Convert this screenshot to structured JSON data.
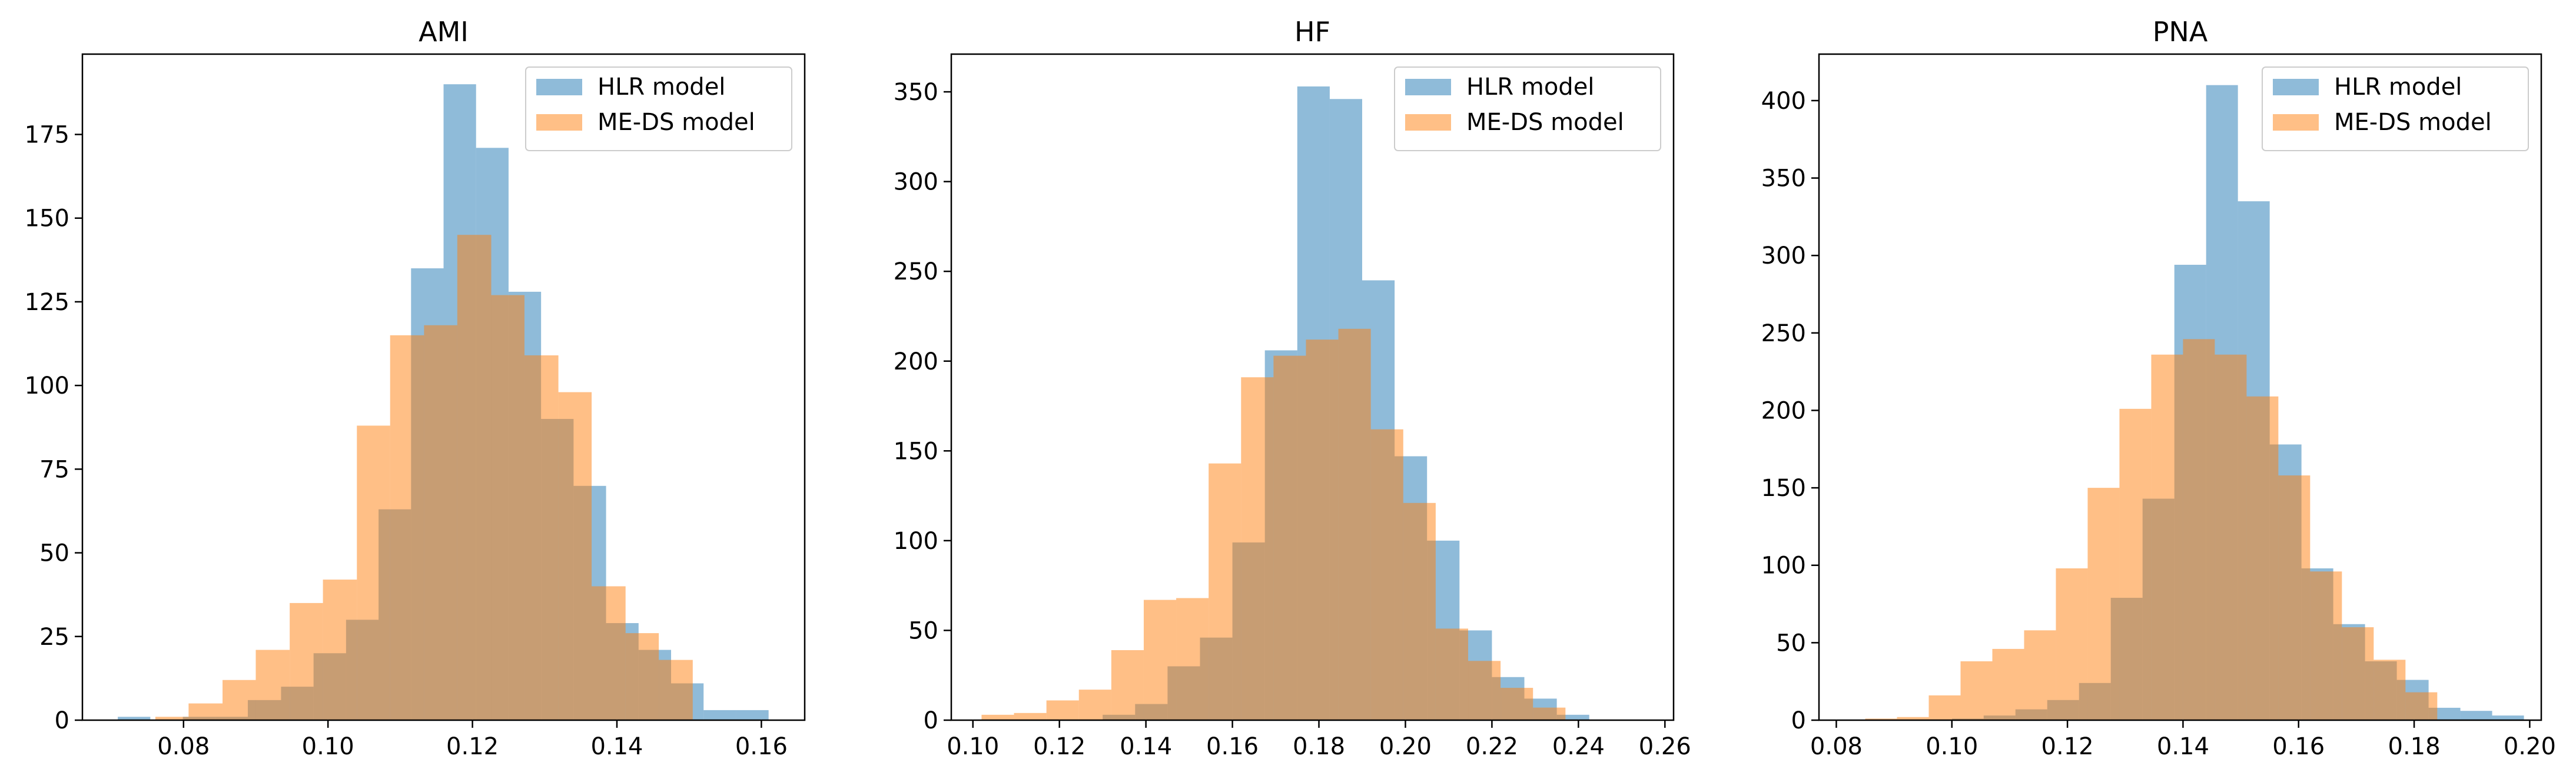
{
  "figure": {
    "colors": {
      "hlr": "#1f77b4",
      "meds": "#ff7f0e",
      "axis": "#000000"
    }
  },
  "chart_data": [
    {
      "type": "histogram",
      "title": "AMI",
      "xlim": [
        0.066,
        0.166
      ],
      "ylim": [
        0,
        199
      ],
      "xticks": [
        0.08,
        0.1,
        0.12,
        0.14,
        0.16
      ],
      "xtick_labels": [
        "0.08",
        "0.10",
        "0.12",
        "0.14",
        "0.16"
      ],
      "yticks": [
        0,
        25,
        50,
        75,
        100,
        125,
        150,
        175
      ],
      "ytick_labels": [
        "0",
        "25",
        "50",
        "75",
        "100",
        "125",
        "150",
        "175"
      ],
      "legend": {
        "loc": "upper right"
      },
      "series": [
        {
          "name": "HLR model",
          "alpha": 0.5,
          "edges": [
            0.0709,
            0.0754,
            0.0799,
            0.0844,
            0.0889,
            0.0935,
            0.098,
            0.1025,
            0.107,
            0.1115,
            0.116,
            0.1205,
            0.125,
            0.1295,
            0.134,
            0.1385,
            0.143,
            0.1475,
            0.152,
            0.1565,
            0.161
          ],
          "values": [
            1,
            0,
            1,
            1,
            6,
            10,
            20,
            30,
            63,
            135,
            190,
            171,
            128,
            90,
            70,
            29,
            21,
            11,
            3,
            3
          ]
        },
        {
          "name": "ME-DS model",
          "alpha": 0.5,
          "edges": [
            0.0761,
            0.0807,
            0.0854,
            0.09,
            0.0947,
            0.0993,
            0.104,
            0.1086,
            0.1133,
            0.1179,
            0.1226,
            0.1272,
            0.1319,
            0.1365,
            0.1412,
            0.1458,
            0.1505
          ],
          "values": [
            1,
            5,
            12,
            21,
            35,
            42,
            88,
            115,
            118,
            145,
            127,
            109,
            98,
            40,
            26,
            18,
            5
          ]
        }
      ]
    },
    {
      "type": "histogram",
      "title": "HF",
      "xlim": [
        0.095,
        0.262
      ],
      "ylim": [
        0,
        371
      ],
      "xticks": [
        0.1,
        0.12,
        0.14,
        0.16,
        0.18,
        0.2,
        0.22,
        0.24,
        0.26
      ],
      "xtick_labels": [
        "0.10",
        "0.12",
        "0.14",
        "0.16",
        "0.18",
        "0.20",
        "0.22",
        "0.24",
        "0.26"
      ],
      "yticks": [
        0,
        50,
        100,
        150,
        200,
        250,
        300,
        350
      ],
      "ytick_labels": [
        "0",
        "50",
        "100",
        "150",
        "200",
        "250",
        "300",
        "350"
      ],
      "legend": {
        "loc": "upper right"
      },
      "series": [
        {
          "name": "HLR model",
          "alpha": 0.5,
          "edges": [
            0.13,
            0.1375,
            0.145,
            0.1525,
            0.16,
            0.1675,
            0.175,
            0.1825,
            0.19,
            0.1975,
            0.205,
            0.2125,
            0.22,
            0.2275,
            0.235,
            0.2425
          ],
          "values": [
            3,
            9,
            30,
            46,
            99,
            206,
            353,
            346,
            245,
            147,
            100,
            50,
            24,
            12,
            3
          ]
        },
        {
          "name": "ME-DS model",
          "alpha": 0.5,
          "edges": [
            0.102,
            0.1095,
            0.117,
            0.1245,
            0.132,
            0.1395,
            0.147,
            0.1545,
            0.162,
            0.1695,
            0.177,
            0.1845,
            0.192,
            0.1995,
            0.207,
            0.2145,
            0.222,
            0.2295,
            0.237
          ],
          "values": [
            3,
            4,
            11,
            17,
            39,
            67,
            68,
            143,
            191,
            203,
            212,
            218,
            162,
            121,
            51,
            33,
            18,
            7,
            2
          ]
        }
      ]
    },
    {
      "type": "histogram",
      "title": "PNA",
      "xlim": [
        0.077,
        0.202
      ],
      "ylim": [
        0,
        430
      ],
      "xticks": [
        0.08,
        0.1,
        0.12,
        0.14,
        0.16,
        0.18,
        0.2
      ],
      "xtick_labels": [
        "0.08",
        "0.10",
        "0.12",
        "0.14",
        "0.16",
        "0.18",
        "0.20"
      ],
      "yticks": [
        0,
        50,
        100,
        150,
        200,
        250,
        300,
        350,
        400
      ],
      "ytick_labels": [
        "0",
        "50",
        "100",
        "150",
        "200",
        "250",
        "300",
        "350",
        "400"
      ],
      "legend": {
        "loc": "upper right"
      },
      "series": [
        {
          "name": "HLR model",
          "alpha": 0.5,
          "edges": [
            0.1,
            0.1055,
            0.111,
            0.1165,
            0.122,
            0.1275,
            0.133,
            0.1385,
            0.144,
            0.1495,
            0.155,
            0.1605,
            0.166,
            0.1715,
            0.177,
            0.1825,
            0.188,
            0.1935,
            0.199
          ],
          "values": [
            1,
            3,
            7,
            13,
            24,
            79,
            143,
            294,
            410,
            335,
            178,
            98,
            62,
            38,
            26,
            8,
            6,
            3
          ]
        },
        {
          "name": "ME-DS model",
          "alpha": 0.5,
          "edges": [
            0.085,
            0.0905,
            0.096,
            0.1015,
            0.107,
            0.1125,
            0.118,
            0.1235,
            0.129,
            0.1345,
            0.14,
            0.1455,
            0.151,
            0.1565,
            0.162,
            0.1675,
            0.173,
            0.1785,
            0.184
          ],
          "values": [
            1,
            2,
            16,
            38,
            46,
            58,
            98,
            150,
            201,
            236,
            246,
            236,
            209,
            158,
            96,
            60,
            39,
            18,
            4
          ]
        }
      ]
    }
  ]
}
